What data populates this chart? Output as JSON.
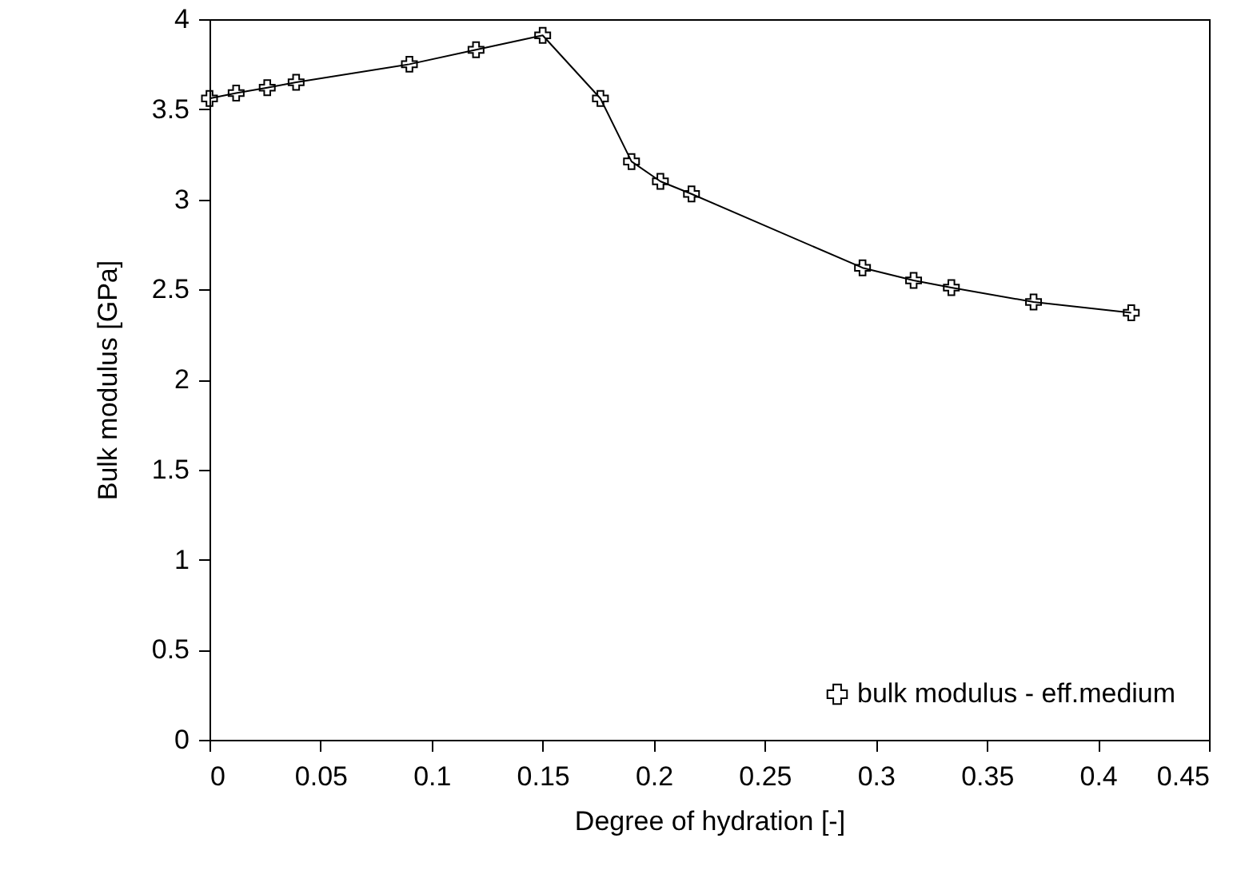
{
  "chart_data": {
    "type": "line",
    "xlabel": "Degree of hydration [-]",
    "ylabel": "Bulk modulus [GPa]",
    "x": [
      0,
      0.012,
      0.026,
      0.039,
      0.09,
      0.12,
      0.15,
      0.176,
      0.19,
      0.203,
      0.217,
      0.294,
      0.317,
      0.334,
      0.371,
      0.415
    ],
    "series": [
      {
        "name": "bulk modulus - eff.medium",
        "color": "#000000",
        "values": [
          3.56,
          3.59,
          3.62,
          3.65,
          3.75,
          3.83,
          3.91,
          3.56,
          3.21,
          3.1,
          3.03,
          2.62,
          2.55,
          2.51,
          2.43,
          2.37
        ]
      }
    ],
    "xlim": [
      0,
      0.45
    ],
    "xticks": [
      0,
      0.05,
      0.1,
      0.15,
      0.2,
      0.25,
      0.3,
      0.35,
      0.4,
      0.45
    ],
    "ylim": [
      0,
      4
    ],
    "yticks": [
      0,
      0.5,
      1,
      1.5,
      2,
      2.5,
      3,
      3.5,
      4
    ],
    "marker": "cross",
    "line_style": "solid",
    "grid": false,
    "legend": "bottom right"
  }
}
